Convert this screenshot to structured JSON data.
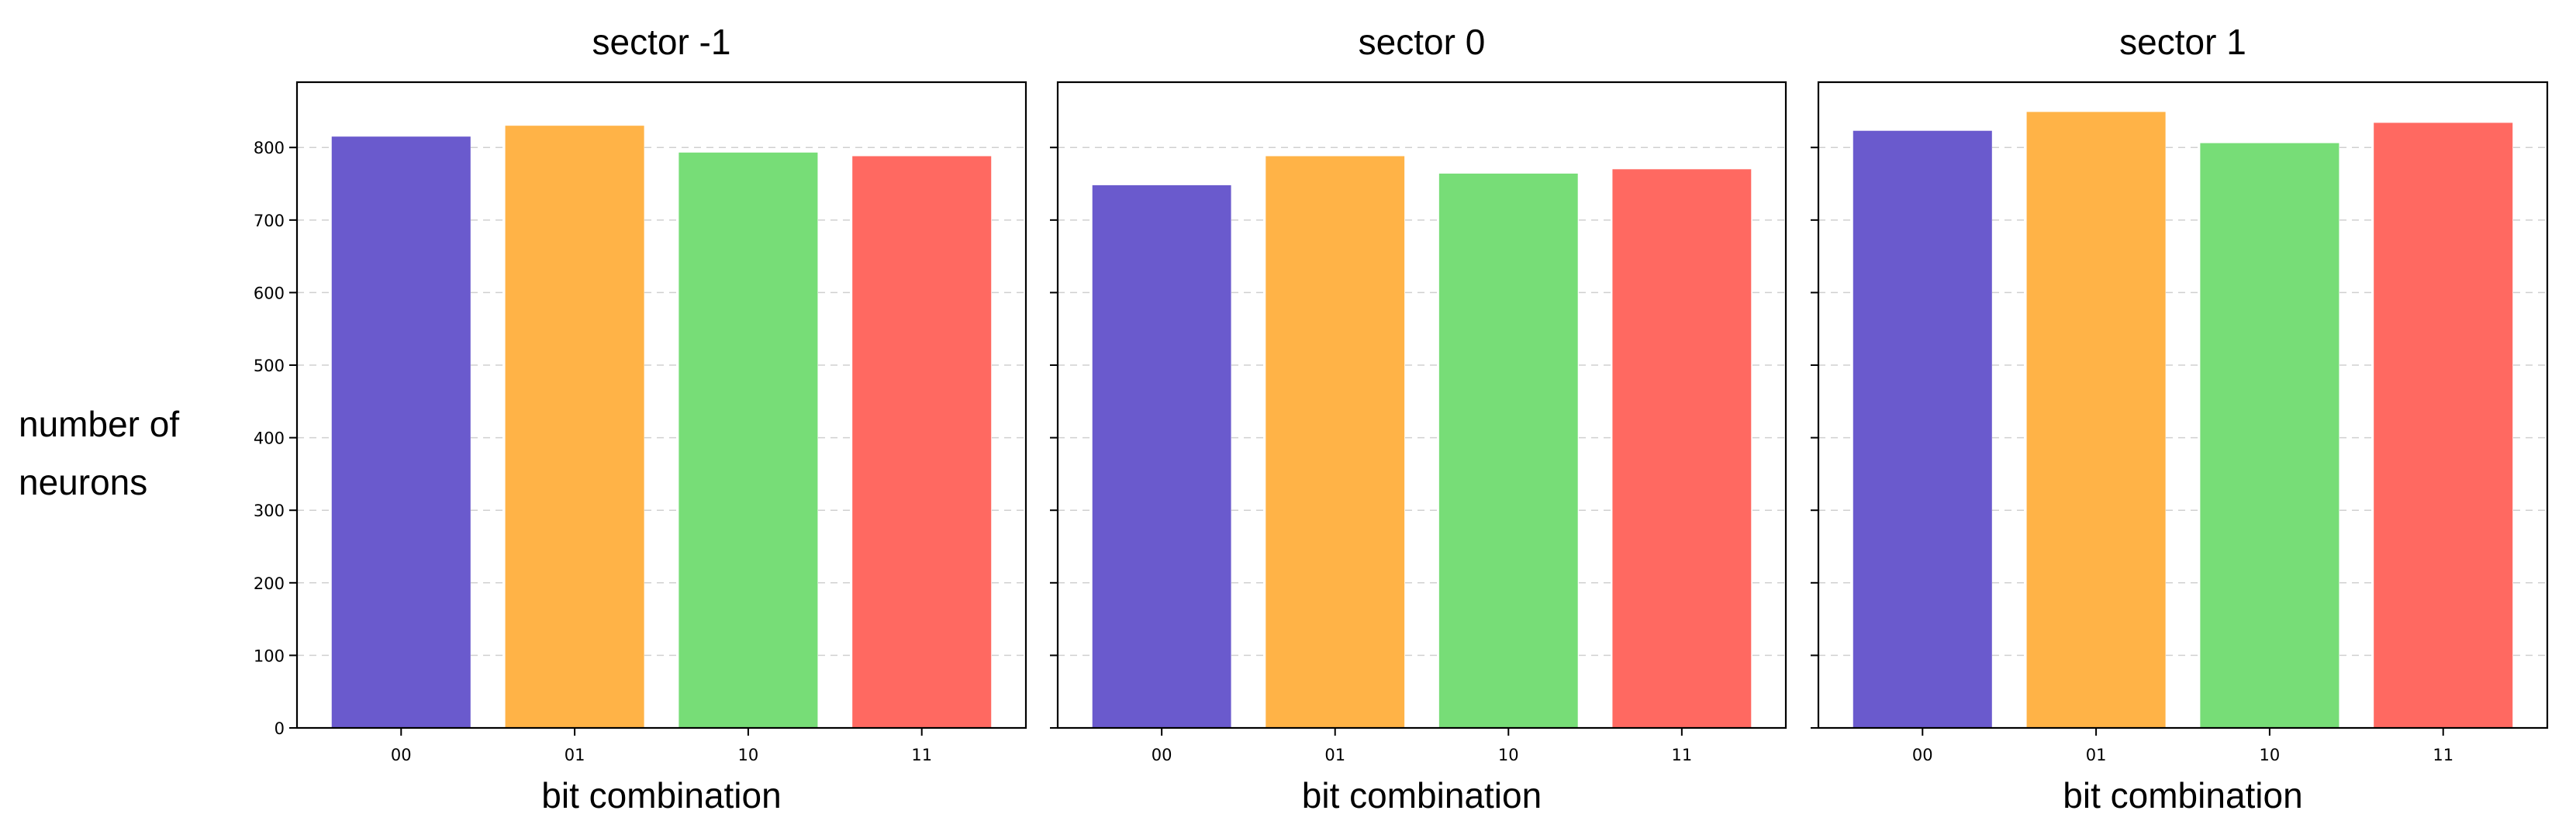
{
  "chart_data": [
    {
      "type": "bar",
      "title": "sector -1",
      "xlabel": "bit combination",
      "ylabel": "number of neurons",
      "categories": [
        "00",
        "01",
        "10",
        "11"
      ],
      "values": [
        815,
        830,
        793,
        788
      ],
      "ylim": [
        0,
        890
      ],
      "yticks": [
        0,
        100,
        200,
        300,
        400,
        500,
        600,
        700,
        800
      ],
      "colors": [
        "#6a5acd",
        "#ffb347",
        "#77dd77",
        "#ff6961"
      ],
      "grid": "y-dashed"
    },
    {
      "type": "bar",
      "title": "sector 0",
      "xlabel": "bit combination",
      "categories": [
        "00",
        "01",
        "10",
        "11"
      ],
      "values": [
        748,
        788,
        764,
        770
      ],
      "ylim": [
        0,
        890
      ],
      "yticks": [
        0,
        100,
        200,
        300,
        400,
        500,
        600,
        700,
        800
      ],
      "colors": [
        "#6a5acd",
        "#ffb347",
        "#77dd77",
        "#ff6961"
      ],
      "grid": "y-dashed"
    },
    {
      "type": "bar",
      "title": "sector 1",
      "xlabel": "bit combination",
      "categories": [
        "00",
        "01",
        "10",
        "11"
      ],
      "values": [
        823,
        849,
        806,
        834
      ],
      "ylim": [
        0,
        890
      ],
      "yticks": [
        0,
        100,
        200,
        300,
        400,
        500,
        600,
        700,
        800
      ],
      "colors": [
        "#6a5acd",
        "#ffb347",
        "#77dd77",
        "#ff6961"
      ],
      "grid": "y-dashed"
    }
  ]
}
